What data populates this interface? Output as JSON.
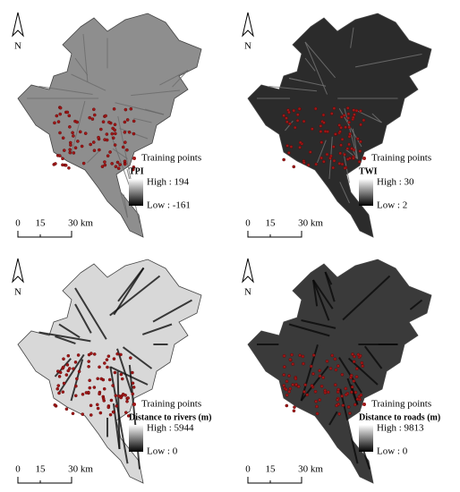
{
  "panels": [
    {
      "north": "N",
      "legend": {
        "points": "Training points",
        "title": "TPI",
        "high": "High : 194",
        "low": "Low : -161"
      },
      "scale": [
        "0",
        "15",
        "30 km"
      ]
    },
    {
      "north": "N",
      "legend": {
        "points": "Training points",
        "title": "TWI",
        "high": "High : 30",
        "low": "Low : 2"
      },
      "scale": [
        "0",
        "15",
        "30 km"
      ]
    },
    {
      "north": "N",
      "legend": {
        "points": "Training points",
        "title": "Distance to rivers (m)",
        "high": "High : 5944",
        "low": "Low : 0"
      },
      "scale": [
        "0",
        "15",
        "30 km"
      ]
    },
    {
      "north": "N",
      "legend": {
        "points": "Training points",
        "title": "Distance to roads (m)",
        "high": "High : 9813",
        "low": "Low : 0"
      },
      "scale": [
        "0",
        "15",
        "30 km"
      ]
    }
  ]
}
